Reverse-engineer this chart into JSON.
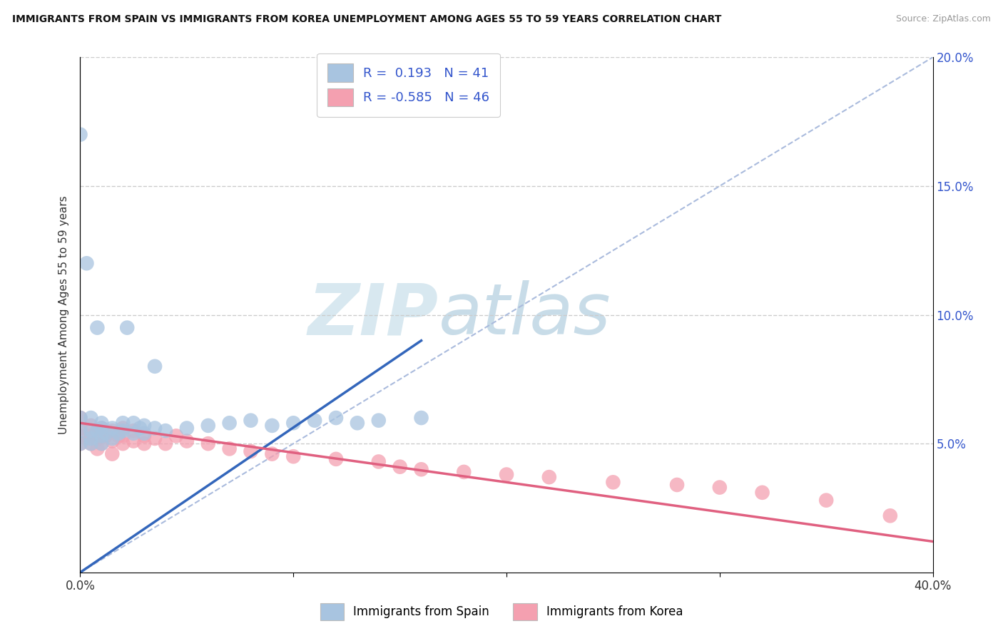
{
  "title": "IMMIGRANTS FROM SPAIN VS IMMIGRANTS FROM KOREA UNEMPLOYMENT AMONG AGES 55 TO 59 YEARS CORRELATION CHART",
  "source": "Source: ZipAtlas.com",
  "ylabel": "Unemployment Among Ages 55 to 59 years",
  "xlim": [
    0.0,
    0.4
  ],
  "ylim": [
    0.0,
    0.2
  ],
  "xticks": [
    0.0,
    0.1,
    0.2,
    0.3,
    0.4
  ],
  "xticklabels": [
    "0.0%",
    "",
    "",
    "",
    "40.0%"
  ],
  "yticks": [
    0.0,
    0.05,
    0.1,
    0.15,
    0.2
  ],
  "yticklabels_right": [
    "",
    "5.0%",
    "10.0%",
    "15.0%",
    "20.0%"
  ],
  "legend_r_spain": "R =  0.193",
  "legend_n_spain": "N = 41",
  "legend_r_korea": "R = -0.585",
  "legend_n_korea": "N = 46",
  "spain_color": "#a8c4e0",
  "korea_color": "#f4a0b0",
  "spain_line_color": "#3366bb",
  "korea_line_color": "#e06080",
  "diag_line_color": "#aabbdd",
  "background_color": "#ffffff",
  "watermark_zip": "ZIP",
  "watermark_atlas": "atlas",
  "spain_scatter_x": [
    0.0,
    0.0,
    0.0,
    0.005,
    0.005,
    0.005,
    0.005,
    0.008,
    0.01,
    0.01,
    0.01,
    0.01,
    0.012,
    0.015,
    0.015,
    0.018,
    0.02,
    0.02,
    0.025,
    0.025,
    0.028,
    0.03,
    0.03,
    0.035,
    0.04,
    0.05,
    0.06,
    0.07,
    0.08,
    0.09,
    0.1,
    0.11,
    0.12,
    0.13,
    0.14,
    0.16,
    0.0,
    0.003,
    0.008,
    0.022,
    0.035
  ],
  "spain_scatter_y": [
    0.05,
    0.055,
    0.06,
    0.05,
    0.052,
    0.055,
    0.06,
    0.055,
    0.05,
    0.053,
    0.056,
    0.058,
    0.054,
    0.052,
    0.056,
    0.054,
    0.055,
    0.058,
    0.054,
    0.058,
    0.056,
    0.054,
    0.057,
    0.056,
    0.055,
    0.056,
    0.057,
    0.058,
    0.059,
    0.057,
    0.058,
    0.059,
    0.06,
    0.058,
    0.059,
    0.06,
    0.17,
    0.12,
    0.095,
    0.095,
    0.08
  ],
  "korea_scatter_x": [
    0.0,
    0.0,
    0.0,
    0.0,
    0.005,
    0.005,
    0.005,
    0.008,
    0.01,
    0.01,
    0.01,
    0.012,
    0.015,
    0.015,
    0.018,
    0.02,
    0.02,
    0.02,
    0.025,
    0.025,
    0.03,
    0.03,
    0.035,
    0.04,
    0.045,
    0.05,
    0.06,
    0.07,
    0.08,
    0.09,
    0.1,
    0.12,
    0.14,
    0.15,
    0.16,
    0.18,
    0.2,
    0.22,
    0.25,
    0.28,
    0.3,
    0.32,
    0.35,
    0.38,
    0.008,
    0.015
  ],
  "korea_scatter_y": [
    0.05,
    0.053,
    0.056,
    0.06,
    0.05,
    0.053,
    0.057,
    0.052,
    0.05,
    0.053,
    0.056,
    0.053,
    0.051,
    0.055,
    0.053,
    0.05,
    0.053,
    0.056,
    0.051,
    0.055,
    0.05,
    0.053,
    0.052,
    0.05,
    0.053,
    0.051,
    0.05,
    0.048,
    0.047,
    0.046,
    0.045,
    0.044,
    0.043,
    0.041,
    0.04,
    0.039,
    0.038,
    0.037,
    0.035,
    0.034,
    0.033,
    0.031,
    0.028,
    0.022,
    0.048,
    0.046
  ],
  "spain_line_x": [
    0.0,
    0.16
  ],
  "spain_line_y": [
    0.0,
    0.09
  ],
  "korea_line_x": [
    0.0,
    0.4
  ],
  "korea_line_y": [
    0.058,
    0.012
  ]
}
